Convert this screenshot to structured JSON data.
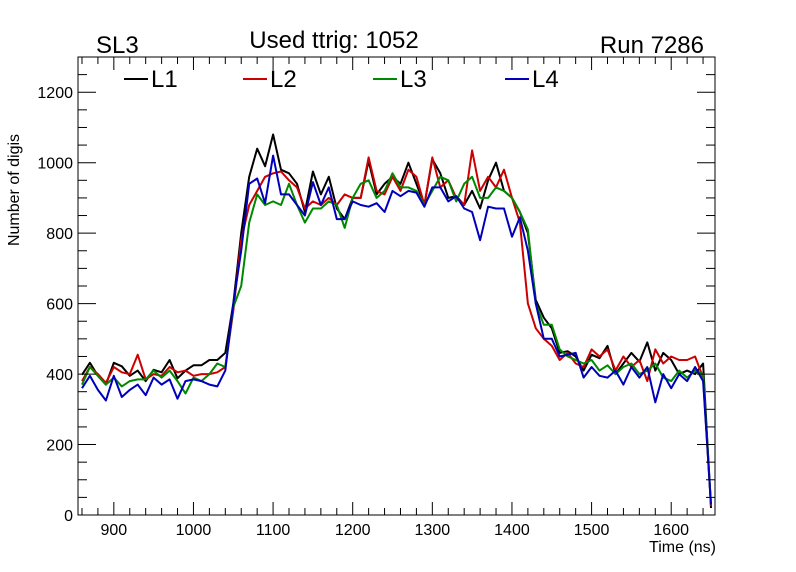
{
  "chart_data": {
    "type": "line",
    "corner_left": "SL3",
    "title": "Used ttrig: 1052",
    "corner_right": "Run 7286",
    "xlabel": "Time (ns)",
    "ylabel": "Number of digis",
    "xlim": [
      855,
      1655
    ],
    "ylim": [
      0,
      1300
    ],
    "xticks": [
      900,
      1000,
      1100,
      1200,
      1300,
      1400,
      1500,
      1600
    ],
    "yticks": [
      0,
      200,
      400,
      600,
      800,
      1000,
      1200
    ],
    "x": [
      860,
      870,
      880,
      890,
      900,
      910,
      920,
      930,
      940,
      950,
      960,
      970,
      980,
      990,
      1000,
      1010,
      1020,
      1030,
      1040,
      1050,
      1060,
      1070,
      1080,
      1090,
      1100,
      1110,
      1120,
      1130,
      1140,
      1150,
      1160,
      1170,
      1180,
      1190,
      1200,
      1210,
      1220,
      1230,
      1240,
      1250,
      1260,
      1270,
      1280,
      1290,
      1300,
      1310,
      1320,
      1330,
      1340,
      1350,
      1360,
      1370,
      1380,
      1390,
      1400,
      1410,
      1420,
      1430,
      1440,
      1450,
      1460,
      1470,
      1480,
      1490,
      1500,
      1510,
      1520,
      1530,
      1540,
      1550,
      1560,
      1570,
      1580,
      1590,
      1600,
      1610,
      1620,
      1630,
      1640,
      1650
    ],
    "series": [
      {
        "name": "L1",
        "color": "#000000",
        "values": [
          398,
          432,
          395,
          370,
          432,
          422,
          395,
          410,
          380,
          412,
          405,
          440,
          388,
          410,
          425,
          425,
          440,
          440,
          460,
          600,
          800,
          960,
          1040,
          990,
          1080,
          980,
          970,
          940,
          860,
          975,
          910,
          960,
          870,
          840,
          900,
          900,
          1005,
          910,
          940,
          960,
          940,
          1000,
          940,
          880,
          1010,
          970,
          900,
          905,
          880,
          920,
          870,
          950,
          1000,
          920,
          900,
          860,
          800,
          610,
          560,
          530,
          460,
          465,
          450,
          410,
          455,
          445,
          480,
          400,
          430,
          460,
          435,
          490,
          410,
          460,
          440,
          400,
          410,
          400,
          430,
          20
        ]
      },
      {
        "name": "L2",
        "color": "#cc0000",
        "values": [
          380,
          420,
          400,
          375,
          420,
          405,
          400,
          455,
          385,
          400,
          395,
          420,
          405,
          410,
          395,
          400,
          400,
          405,
          420,
          580,
          780,
          880,
          920,
          960,
          970,
          975,
          950,
          930,
          870,
          890,
          880,
          900,
          880,
          910,
          900,
          900,
          1015,
          920,
          910,
          960,
          920,
          980,
          960,
          880,
          1015,
          930,
          950,
          900,
          880,
          1035,
          920,
          960,
          930,
          980,
          900,
          830,
          600,
          530,
          500,
          480,
          440,
          460,
          430,
          420,
          470,
          450,
          470,
          410,
          450,
          420,
          440,
          380,
          470,
          430,
          450,
          440,
          440,
          450,
          390,
          25
        ]
      },
      {
        "name": "L3",
        "color": "#008800",
        "values": [
          370,
          420,
          395,
          370,
          390,
          365,
          380,
          385,
          385,
          410,
          390,
          410,
          380,
          345,
          390,
          380,
          400,
          430,
          420,
          590,
          650,
          830,
          910,
          880,
          890,
          880,
          940,
          880,
          830,
          870,
          870,
          890,
          880,
          815,
          900,
          940,
          950,
          900,
          920,
          970,
          930,
          930,
          920,
          880,
          920,
          960,
          950,
          890,
          940,
          960,
          900,
          900,
          930,
          920,
          900,
          860,
          810,
          600,
          540,
          540,
          470,
          450,
          440,
          430,
          440,
          410,
          425,
          400,
          420,
          430,
          400,
          410,
          430,
          390,
          380,
          410,
          390,
          410,
          400,
          30
        ]
      },
      {
        "name": "L4",
        "color": "#0000bb",
        "values": [
          360,
          395,
          355,
          325,
          395,
          335,
          355,
          370,
          340,
          390,
          370,
          385,
          330,
          380,
          385,
          380,
          370,
          365,
          410,
          600,
          750,
          940,
          955,
          885,
          1020,
          910,
          910,
          880,
          850,
          945,
          880,
          930,
          840,
          840,
          890,
          880,
          875,
          885,
          860,
          920,
          905,
          920,
          915,
          875,
          930,
          930,
          890,
          905,
          870,
          860,
          780,
          875,
          870,
          870,
          790,
          845,
          750,
          600,
          500,
          500,
          450,
          455,
          460,
          390,
          420,
          395,
          390,
          410,
          370,
          420,
          390,
          420,
          320,
          400,
          360,
          400,
          380,
          420,
          380,
          30
        ]
      }
    ],
    "legend_position": "top"
  }
}
